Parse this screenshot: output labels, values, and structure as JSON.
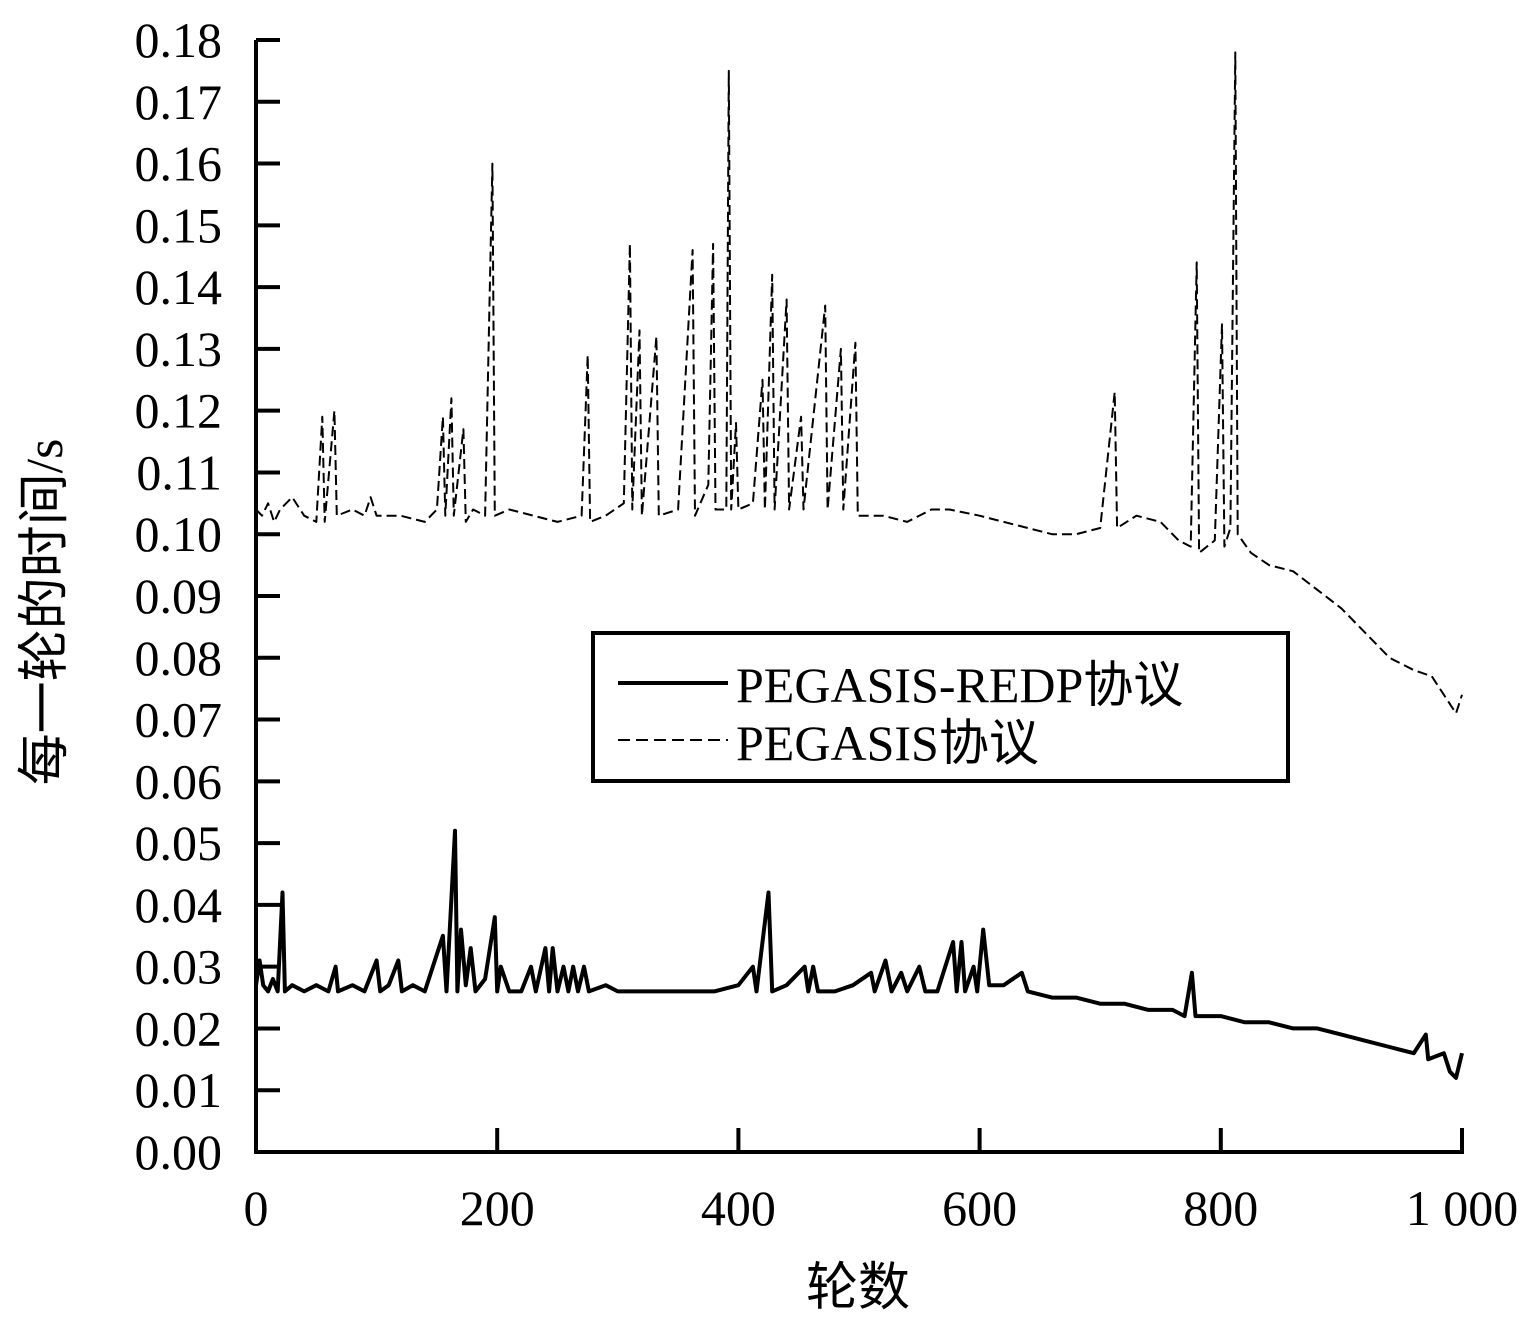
{
  "chart_data": {
    "type": "line",
    "title": "",
    "xlabel": "轮数",
    "ylabel": "每一轮的时间/s",
    "xlim": [
      0,
      1000
    ],
    "ylim": [
      0,
      0.18
    ],
    "x_ticks": [
      0,
      200,
      400,
      600,
      800,
      1000
    ],
    "x_tick_labels": [
      "0",
      "200",
      "400",
      "600",
      "800",
      "1 000"
    ],
    "y_ticks": [
      0,
      0.01,
      0.02,
      0.03,
      0.04,
      0.05,
      0.06,
      0.07,
      0.08,
      0.09,
      0.1,
      0.11,
      0.12,
      0.13,
      0.14,
      0.15,
      0.16,
      0.17,
      0.18
    ],
    "y_tick_labels": [
      "0.00",
      "0.01",
      "0.02",
      "0.03",
      "0.04",
      "0.05",
      "0.06",
      "0.07",
      "0.08",
      "0.09",
      "0.10",
      "0.11",
      "0.12",
      "0.13",
      "0.14",
      "0.15",
      "0.16",
      "0.17",
      "0.18"
    ],
    "grid": false,
    "legend_position": "center-right",
    "series": [
      {
        "name": "PEGASIS-REDP协议",
        "style": "solid",
        "color": "#000000",
        "points": [
          [
            0,
            0.027
          ],
          [
            3,
            0.031
          ],
          [
            6,
            0.027
          ],
          [
            10,
            0.026
          ],
          [
            14,
            0.028
          ],
          [
            18,
            0.026
          ],
          [
            22,
            0.042
          ],
          [
            24,
            0.026
          ],
          [
            30,
            0.027
          ],
          [
            40,
            0.026
          ],
          [
            50,
            0.027
          ],
          [
            60,
            0.026
          ],
          [
            66,
            0.03
          ],
          [
            68,
            0.026
          ],
          [
            80,
            0.027
          ],
          [
            90,
            0.026
          ],
          [
            100,
            0.031
          ],
          [
            103,
            0.026
          ],
          [
            110,
            0.027
          ],
          [
            118,
            0.031
          ],
          [
            121,
            0.026
          ],
          [
            130,
            0.027
          ],
          [
            140,
            0.026
          ],
          [
            155,
            0.035
          ],
          [
            158,
            0.026
          ],
          [
            165,
            0.052
          ],
          [
            167,
            0.026
          ],
          [
            170,
            0.036
          ],
          [
            174,
            0.027
          ],
          [
            178,
            0.033
          ],
          [
            182,
            0.026
          ],
          [
            190,
            0.028
          ],
          [
            198,
            0.038
          ],
          [
            200,
            0.026
          ],
          [
            203,
            0.03
          ],
          [
            210,
            0.026
          ],
          [
            220,
            0.026
          ],
          [
            228,
            0.03
          ],
          [
            232,
            0.026
          ],
          [
            240,
            0.033
          ],
          [
            243,
            0.026
          ],
          [
            246,
            0.033
          ],
          [
            250,
            0.026
          ],
          [
            255,
            0.03
          ],
          [
            259,
            0.026
          ],
          [
            263,
            0.03
          ],
          [
            267,
            0.026
          ],
          [
            272,
            0.03
          ],
          [
            276,
            0.026
          ],
          [
            290,
            0.027
          ],
          [
            300,
            0.026
          ],
          [
            320,
            0.026
          ],
          [
            340,
            0.026
          ],
          [
            360,
            0.026
          ],
          [
            380,
            0.026
          ],
          [
            400,
            0.027
          ],
          [
            412,
            0.03
          ],
          [
            415,
            0.026
          ],
          [
            425,
            0.042
          ],
          [
            428,
            0.026
          ],
          [
            440,
            0.027
          ],
          [
            455,
            0.03
          ],
          [
            458,
            0.026
          ],
          [
            462,
            0.03
          ],
          [
            466,
            0.026
          ],
          [
            480,
            0.026
          ],
          [
            495,
            0.027
          ],
          [
            510,
            0.029
          ],
          [
            513,
            0.026
          ],
          [
            522,
            0.031
          ],
          [
            527,
            0.026
          ],
          [
            535,
            0.029
          ],
          [
            540,
            0.026
          ],
          [
            550,
            0.03
          ],
          [
            555,
            0.026
          ],
          [
            565,
            0.026
          ],
          [
            578,
            0.034
          ],
          [
            581,
            0.026
          ],
          [
            585,
            0.034
          ],
          [
            588,
            0.026
          ],
          [
            595,
            0.03
          ],
          [
            598,
            0.026
          ],
          [
            603,
            0.036
          ],
          [
            608,
            0.027
          ],
          [
            620,
            0.027
          ],
          [
            635,
            0.029
          ],
          [
            640,
            0.026
          ],
          [
            660,
            0.025
          ],
          [
            680,
            0.025
          ],
          [
            700,
            0.024
          ],
          [
            720,
            0.024
          ],
          [
            740,
            0.023
          ],
          [
            760,
            0.023
          ],
          [
            770,
            0.022
          ],
          [
            776,
            0.029
          ],
          [
            779,
            0.022
          ],
          [
            800,
            0.022
          ],
          [
            820,
            0.021
          ],
          [
            840,
            0.021
          ],
          [
            860,
            0.02
          ],
          [
            880,
            0.02
          ],
          [
            900,
            0.019
          ],
          [
            920,
            0.018
          ],
          [
            940,
            0.017
          ],
          [
            960,
            0.016
          ],
          [
            970,
            0.019
          ],
          [
            972,
            0.015
          ],
          [
            985,
            0.016
          ],
          [
            990,
            0.013
          ],
          [
            995,
            0.012
          ],
          [
            1000,
            0.016
          ]
        ]
      },
      {
        "name": "PEGASIS协议",
        "style": "dashed",
        "color": "#000000",
        "points": [
          [
            0,
            0.104
          ],
          [
            5,
            0.103
          ],
          [
            10,
            0.105
          ],
          [
            15,
            0.102
          ],
          [
            20,
            0.104
          ],
          [
            30,
            0.106
          ],
          [
            40,
            0.103
          ],
          [
            50,
            0.102
          ],
          [
            55,
            0.119
          ],
          [
            57,
            0.102
          ],
          [
            65,
            0.12
          ],
          [
            67,
            0.103
          ],
          [
            80,
            0.104
          ],
          [
            90,
            0.103
          ],
          [
            95,
            0.106
          ],
          [
            100,
            0.103
          ],
          [
            120,
            0.103
          ],
          [
            140,
            0.102
          ],
          [
            150,
            0.104
          ],
          [
            155,
            0.119
          ],
          [
            157,
            0.103
          ],
          [
            162,
            0.122
          ],
          [
            164,
            0.103
          ],
          [
            172,
            0.117
          ],
          [
            174,
            0.102
          ],
          [
            180,
            0.104
          ],
          [
            190,
            0.103
          ],
          [
            196,
            0.16
          ],
          [
            198,
            0.103
          ],
          [
            210,
            0.104
          ],
          [
            230,
            0.103
          ],
          [
            250,
            0.102
          ],
          [
            270,
            0.103
          ],
          [
            275,
            0.129
          ],
          [
            277,
            0.102
          ],
          [
            290,
            0.103
          ],
          [
            305,
            0.105
          ],
          [
            310,
            0.147
          ],
          [
            312,
            0.104
          ],
          [
            318,
            0.133
          ],
          [
            320,
            0.103
          ],
          [
            332,
            0.132
          ],
          [
            334,
            0.103
          ],
          [
            350,
            0.104
          ],
          [
            362,
            0.146
          ],
          [
            364,
            0.103
          ],
          [
            375,
            0.108
          ],
          [
            379,
            0.147
          ],
          [
            381,
            0.104
          ],
          [
            390,
            0.104
          ],
          [
            392,
            0.175
          ],
          [
            394,
            0.104
          ],
          [
            398,
            0.118
          ],
          [
            400,
            0.104
          ],
          [
            412,
            0.105
          ],
          [
            420,
            0.125
          ],
          [
            422,
            0.104
          ],
          [
            428,
            0.142
          ],
          [
            430,
            0.104
          ],
          [
            440,
            0.138
          ],
          [
            442,
            0.104
          ],
          [
            452,
            0.119
          ],
          [
            454,
            0.104
          ],
          [
            472,
            0.137
          ],
          [
            474,
            0.104
          ],
          [
            485,
            0.13
          ],
          [
            487,
            0.104
          ],
          [
            497,
            0.131
          ],
          [
            499,
            0.103
          ],
          [
            520,
            0.103
          ],
          [
            540,
            0.102
          ],
          [
            560,
            0.104
          ],
          [
            575,
            0.104
          ],
          [
            600,
            0.103
          ],
          [
            620,
            0.102
          ],
          [
            640,
            0.101
          ],
          [
            660,
            0.1
          ],
          [
            680,
            0.1
          ],
          [
            700,
            0.101
          ],
          [
            712,
            0.123
          ],
          [
            714,
            0.101
          ],
          [
            730,
            0.103
          ],
          [
            750,
            0.102
          ],
          [
            765,
            0.099
          ],
          [
            775,
            0.098
          ],
          [
            780,
            0.144
          ],
          [
            782,
            0.097
          ],
          [
            795,
            0.099
          ],
          [
            801,
            0.134
          ],
          [
            803,
            0.098
          ],
          [
            808,
            0.101
          ],
          [
            812,
            0.178
          ],
          [
            814,
            0.1
          ],
          [
            825,
            0.097
          ],
          [
            840,
            0.095
          ],
          [
            860,
            0.094
          ],
          [
            880,
            0.091
          ],
          [
            900,
            0.088
          ],
          [
            920,
            0.084
          ],
          [
            940,
            0.08
          ],
          [
            960,
            0.078
          ],
          [
            975,
            0.077
          ],
          [
            985,
            0.074
          ],
          [
            995,
            0.071
          ],
          [
            1000,
            0.074
          ]
        ]
      }
    ]
  }
}
